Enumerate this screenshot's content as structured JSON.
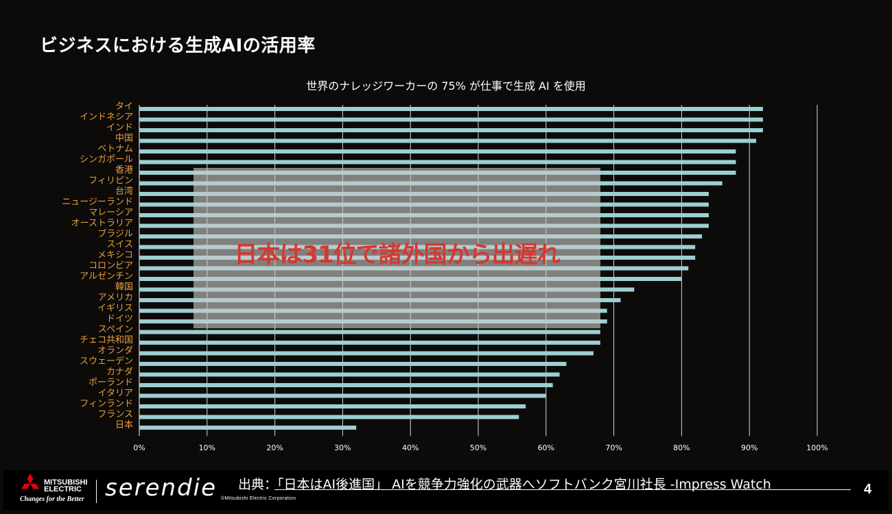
{
  "page": {
    "title": "ビジネスにおける生成AIの活用率",
    "page_number": "4"
  },
  "overlay": {
    "text": "日本は31位で諸外国から出遅れ"
  },
  "footer": {
    "logo_line1": "MITSUBISHI",
    "logo_line2": "ELECTRIC",
    "tagline": "Changes for the Better",
    "brand": "serendie",
    "copyright": "©Mitsubishi Electric Corporation",
    "source": "出典：「日本はAI後進国」 AIを競争力強化の武器へソフトバンク宮川社長 -Impress Watch"
  },
  "colors": {
    "background": "#0d0b09",
    "bar": "#9ccfd2",
    "category_label": "#e8a040",
    "grid": "#ffffff",
    "overlay_text": "#d6382f"
  },
  "chart_data": {
    "type": "bar",
    "orientation": "horizontal",
    "title": "世界のナレッジワーカーの 75% が仕事で生成 AI を使用",
    "categories": [
      "タイ",
      "インドネシア",
      "インド",
      "中国",
      "ベトナム",
      "シンガポール",
      "香港",
      "フィリピン",
      "台湾",
      "ニュージーランド",
      "マレーシア",
      "オーストラリア",
      "ブラジル",
      "スイス",
      "メキシコ",
      "コロンビア",
      "アルゼンチン",
      "韓国",
      "アメリカ",
      "イギリス",
      "ドイツ",
      "スペイン",
      "チェコ共和国",
      "オランダ",
      "スウェーデン",
      "カナダ",
      "ポーランド",
      "イタリア",
      "フィンランド",
      "フランス",
      "日本"
    ],
    "values": [
      92,
      92,
      92,
      91,
      88,
      88,
      88,
      86,
      84,
      84,
      84,
      84,
      83,
      82,
      82,
      81,
      80,
      73,
      71,
      69,
      69,
      68,
      68,
      67,
      63,
      62,
      61,
      60,
      57,
      56,
      32
    ],
    "xlim": [
      0,
      100
    ],
    "x_ticks": [
      "0%",
      "10%",
      "20%",
      "30%",
      "40%",
      "50%",
      "60%",
      "70%",
      "80%",
      "90%",
      "100%"
    ],
    "grid": "vertical"
  }
}
